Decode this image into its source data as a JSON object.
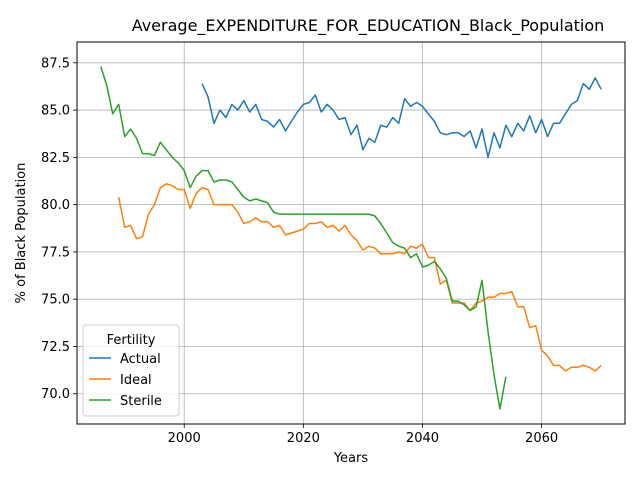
{
  "chart_data": {
    "type": "line",
    "title": "Average_EXPENDITURE_FOR_EDUCATION_Black_Population",
    "xlabel": "Years",
    "ylabel": "% of Black Population",
    "xlim": [
      1982,
      2074
    ],
    "ylim": [
      68.4,
      88.6
    ],
    "xticks": [
      2000,
      2020,
      2040,
      2060
    ],
    "yticks": [
      70.0,
      72.5,
      75.0,
      77.5,
      80.0,
      82.5,
      85.0,
      87.5
    ],
    "grid": true,
    "legend": {
      "title": "Fertility",
      "placement": "lower-left"
    },
    "series": [
      {
        "name": "Actual",
        "color": "#1f77b4",
        "x": [
          2003,
          2004,
          2005,
          2006,
          2007,
          2008,
          2009,
          2010,
          2011,
          2012,
          2013,
          2014,
          2015,
          2016,
          2017,
          2018,
          2019,
          2020,
          2021,
          2022,
          2023,
          2024,
          2025,
          2026,
          2027,
          2028,
          2029,
          2030,
          2031,
          2032,
          2033,
          2034,
          2035,
          2036,
          2037,
          2038,
          2039,
          2040,
          2041,
          2042,
          2043,
          2044,
          2045,
          2046,
          2047,
          2048,
          2049,
          2050,
          2051,
          2052,
          2053,
          2054,
          2055,
          2056,
          2057,
          2058,
          2059,
          2060,
          2061,
          2062,
          2063,
          2064,
          2065,
          2066,
          2067,
          2068,
          2069,
          2070
        ],
        "values": [
          86.4,
          85.7,
          84.3,
          85.0,
          84.6,
          85.3,
          85.0,
          85.5,
          84.9,
          85.3,
          84.5,
          84.4,
          84.1,
          84.5,
          83.9,
          84.4,
          84.9,
          85.3,
          85.4,
          85.8,
          84.9,
          85.3,
          85.0,
          84.5,
          84.6,
          83.7,
          84.2,
          82.9,
          83.5,
          83.3,
          84.2,
          84.1,
          84.6,
          84.3,
          85.6,
          85.2,
          85.4,
          85.2,
          84.8,
          84.4,
          83.8,
          83.7,
          83.8,
          83.8,
          83.6,
          83.9,
          83.0,
          84.0,
          82.5,
          83.8,
          83.0,
          84.2,
          83.6,
          84.3,
          83.9,
          84.7,
          83.8,
          84.5,
          83.6,
          84.3,
          84.3,
          84.8,
          85.3,
          85.5,
          86.4,
          86.1,
          86.7,
          86.1
        ]
      },
      {
        "name": "Ideal",
        "color": "#ff7f0e",
        "x": [
          1989,
          1990,
          1991,
          1992,
          1993,
          1994,
          1995,
          1996,
          1997,
          1998,
          1999,
          2000,
          2001,
          2002,
          2003,
          2004,
          2005,
          2006,
          2007,
          2008,
          2009,
          2010,
          2011,
          2012,
          2013,
          2014,
          2015,
          2016,
          2017,
          2018,
          2019,
          2020,
          2021,
          2022,
          2023,
          2024,
          2025,
          2026,
          2027,
          2028,
          2029,
          2030,
          2031,
          2032,
          2033,
          2034,
          2035,
          2036,
          2037,
          2038,
          2039,
          2040,
          2041,
          2042,
          2043,
          2044,
          2045,
          2046,
          2047,
          2048,
          2049,
          2050,
          2051,
          2052,
          2053,
          2054,
          2055,
          2056,
          2057,
          2058,
          2059,
          2060,
          2061,
          2062,
          2063,
          2064,
          2065,
          2066,
          2067,
          2068,
          2069,
          2070
        ],
        "values": [
          80.4,
          78.8,
          78.9,
          78.2,
          78.3,
          79.5,
          80.0,
          80.9,
          81.1,
          81.0,
          80.8,
          80.8,
          79.8,
          80.6,
          80.9,
          80.8,
          80.0,
          80.0,
          80.0,
          80.0,
          79.6,
          79.0,
          79.1,
          79.3,
          79.1,
          79.1,
          78.8,
          78.9,
          78.4,
          78.5,
          78.6,
          78.7,
          79.0,
          79.0,
          79.1,
          78.8,
          78.9,
          78.6,
          78.9,
          78.4,
          78.1,
          77.6,
          77.8,
          77.7,
          77.4,
          77.4,
          77.4,
          77.5,
          77.4,
          77.8,
          77.7,
          77.9,
          77.2,
          77.2,
          75.8,
          76.0,
          74.8,
          74.8,
          74.8,
          74.4,
          74.8,
          74.9,
          75.1,
          75.1,
          75.3,
          75.3,
          75.4,
          74.6,
          74.6,
          73.5,
          73.6,
          72.3,
          72.0,
          71.5,
          71.5,
          71.2,
          71.4,
          71.4,
          71.5,
          71.4,
          71.2,
          71.5
        ]
      },
      {
        "name": "Sterile",
        "color": "#2ca02c",
        "x": [
          1986,
          1987,
          1988,
          1989,
          1990,
          1991,
          1992,
          1993,
          1994,
          1995,
          1996,
          1997,
          1998,
          1999,
          2000,
          2001,
          2002,
          2003,
          2004,
          2005,
          2006,
          2007,
          2008,
          2009,
          2010,
          2011,
          2012,
          2013,
          2014,
          2015,
          2016,
          2017,
          2018,
          2019,
          2020,
          2021,
          2022,
          2023,
          2024,
          2025,
          2026,
          2027,
          2028,
          2029,
          2030,
          2031,
          2032,
          2033,
          2034,
          2035,
          2036,
          2037,
          2038,
          2039,
          2040,
          2041,
          2042,
          2043,
          2044,
          2045,
          2046,
          2047,
          2048,
          2049,
          2050,
          2051,
          2052,
          2053,
          2054
        ],
        "values": [
          87.3,
          86.3,
          84.8,
          85.3,
          83.6,
          84.0,
          83.5,
          82.7,
          82.7,
          82.6,
          83.3,
          82.9,
          82.5,
          82.2,
          81.8,
          80.9,
          81.5,
          81.8,
          81.8,
          81.2,
          81.3,
          81.3,
          81.2,
          80.8,
          80.4,
          80.2,
          80.3,
          80.2,
          80.1,
          79.6,
          79.5,
          79.5,
          79.5,
          79.5,
          79.5,
          79.5,
          79.5,
          79.5,
          79.5,
          79.5,
          79.5,
          79.5,
          79.5,
          79.5,
          79.5,
          79.5,
          79.4,
          79.0,
          78.5,
          78.0,
          77.8,
          77.7,
          77.2,
          77.4,
          76.7,
          76.8,
          77.0,
          76.6,
          76.1,
          74.9,
          74.9,
          74.7,
          74.4,
          74.6,
          76.0,
          73.3,
          71.0,
          69.2,
          70.9
        ]
      }
    ]
  }
}
